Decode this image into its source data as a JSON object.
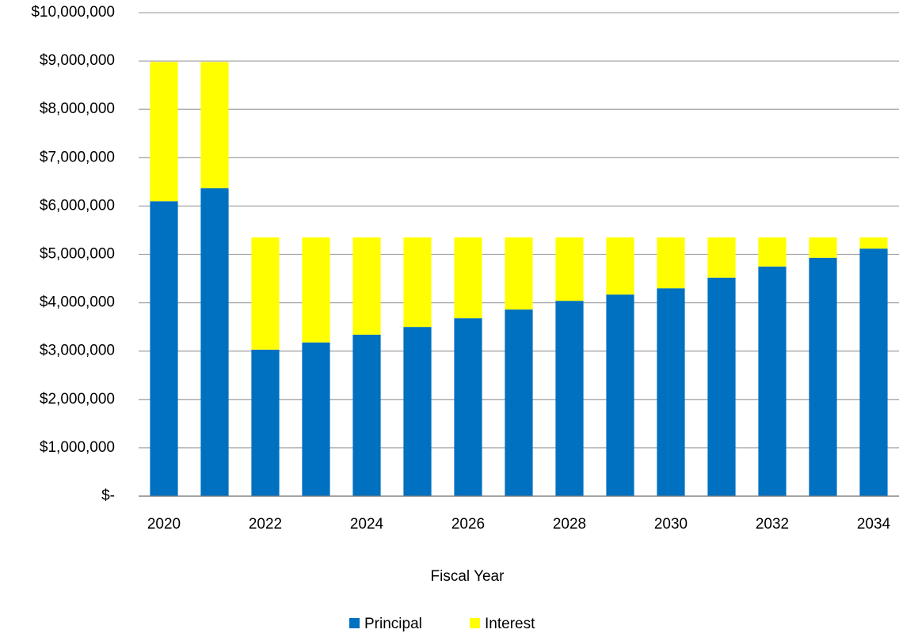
{
  "chart_data": {
    "type": "stacked_bar",
    "x_label": "Fiscal Year",
    "categories": [
      "2020",
      null,
      "2022",
      null,
      "2024",
      null,
      "2026",
      null,
      "2028",
      null,
      "2030",
      null,
      "2032",
      null,
      "2034"
    ],
    "series": [
      {
        "name": "Principal",
        "color": "#0070c0",
        "values": [
          6100000,
          6370000,
          3030000,
          3180000,
          3340000,
          3500000,
          3680000,
          3860000,
          4040000,
          4170000,
          4300000,
          4520000,
          4750000,
          4930000,
          5120000
        ]
      },
      {
        "name": "Interest",
        "color": "#ffff00",
        "values": [
          2880000,
          2610000,
          2320000,
          2170000,
          2010000,
          1850000,
          1670000,
          1490000,
          1310000,
          1180000,
          1050000,
          830000,
          600000,
          420000,
          230000
        ]
      }
    ],
    "ylim": [
      0,
      10000000
    ],
    "yticks": [
      {
        "value": 0,
        "label": "$-"
      },
      {
        "value": 1000000,
        "label": "$1,000,000"
      },
      {
        "value": 2000000,
        "label": "$2,000,000"
      },
      {
        "value": 3000000,
        "label": "$3,000,000"
      },
      {
        "value": 4000000,
        "label": "$4,000,000"
      },
      {
        "value": 5000000,
        "label": "$5,000,000"
      },
      {
        "value": 6000000,
        "label": "$6,000,000"
      },
      {
        "value": 7000000,
        "label": "$7,000,000"
      },
      {
        "value": 8000000,
        "label": "$8,000,000"
      },
      {
        "value": 9000000,
        "label": "$9,000,000"
      },
      {
        "value": 10000000,
        "label": "$10,000,000"
      }
    ],
    "grid": true,
    "legend": "bottom"
  }
}
